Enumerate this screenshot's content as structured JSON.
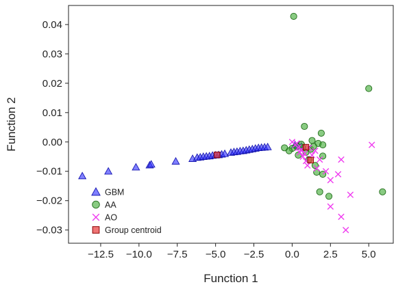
{
  "chart_data": {
    "type": "scatter",
    "xlabel": "Function 1",
    "ylabel": "Function 2",
    "xlim": [
      -14.6,
      6.6
    ],
    "ylim": [
      -0.0345,
      0.0465
    ],
    "x_ticks": [
      -12.5,
      -10.0,
      -7.5,
      -5.0,
      -2.5,
      0.0,
      2.5,
      5.0
    ],
    "x_tick_labels": [
      "−12.5",
      "−10.0",
      "−7.5",
      "−5.0",
      "−2.5",
      "0.0",
      "2.5",
      "5.0"
    ],
    "y_ticks": [
      -0.03,
      -0.02,
      -0.01,
      0.0,
      0.01,
      0.02,
      0.03,
      0.04
    ],
    "y_tick_labels": [
      "−0.03",
      "−0.02",
      "−0.01",
      "0.00",
      "0.01",
      "0.02",
      "0.03",
      "0.04"
    ],
    "grid": false,
    "legend_position": "bottom-left",
    "series": [
      {
        "name": "GBM",
        "marker": "triangle",
        "color": "#2b2bff",
        "edge": "#1616b0",
        "points": [
          [
            -13.7,
            -0.0116
          ],
          [
            -12.0,
            -0.01
          ],
          [
            -10.2,
            -0.0086
          ],
          [
            -9.3,
            -0.0079
          ],
          [
            -9.2,
            -0.0076
          ],
          [
            -7.6,
            -0.0066
          ],
          [
            -6.5,
            -0.0057
          ],
          [
            -6.2,
            -0.0053
          ],
          [
            -6.0,
            -0.0052
          ],
          [
            -5.8,
            -0.005
          ],
          [
            -5.6,
            -0.0049
          ],
          [
            -5.4,
            -0.0048
          ],
          [
            -5.2,
            -0.0046
          ],
          [
            -5.0,
            -0.0045
          ],
          [
            -4.8,
            -0.0044
          ],
          [
            -4.6,
            -0.0042
          ],
          [
            -4.4,
            -0.004
          ],
          [
            -4.0,
            -0.0036
          ],
          [
            -3.8,
            -0.0034
          ],
          [
            -3.6,
            -0.0033
          ],
          [
            -3.4,
            -0.0031
          ],
          [
            -3.2,
            -0.003
          ],
          [
            -3.0,
            -0.0028
          ],
          [
            -2.8,
            -0.0026
          ],
          [
            -2.6,
            -0.0024
          ],
          [
            -2.4,
            -0.0022
          ],
          [
            -2.2,
            -0.002
          ],
          [
            -2.0,
            -0.0019
          ],
          [
            -1.8,
            -0.0018
          ],
          [
            -1.6,
            -0.0017
          ],
          [
            0.2,
            -0.001
          ],
          [
            0.4,
            -0.0012
          ],
          [
            0.6,
            -0.0015
          ]
        ]
      },
      {
        "name": "AA",
        "marker": "circle",
        "color": "#3aa82e",
        "edge": "#1f6b18",
        "points": [
          [
            0.1,
            0.0428
          ],
          [
            5.0,
            0.0182
          ],
          [
            0.8,
            0.0053
          ],
          [
            1.9,
            0.003
          ],
          [
            1.3,
            0.0005
          ],
          [
            1.7,
            -0.0005
          ],
          [
            2.0,
            -0.001
          ],
          [
            0.0,
            -0.0022
          ],
          [
            -0.2,
            -0.003
          ],
          [
            -0.5,
            -0.002
          ],
          [
            0.3,
            -0.0015
          ],
          [
            0.6,
            -0.0008
          ],
          [
            0.9,
            -0.0035
          ],
          [
            1.1,
            -0.006
          ],
          [
            1.5,
            -0.008
          ],
          [
            1.6,
            -0.0103
          ],
          [
            2.0,
            -0.011
          ],
          [
            2.0,
            -0.0048
          ],
          [
            1.8,
            -0.017
          ],
          [
            2.4,
            -0.0185
          ],
          [
            5.9,
            -0.017
          ],
          [
            0.4,
            -0.0045
          ],
          [
            1.2,
            -0.0025
          ],
          [
            0.7,
            -0.002
          ],
          [
            1.4,
            -0.0015
          ]
        ]
      },
      {
        "name": "AO",
        "marker": "x",
        "color": "#ef3cef",
        "points": [
          [
            0.0,
            0.0
          ],
          [
            0.2,
            -0.001
          ],
          [
            0.4,
            -0.002
          ],
          [
            0.5,
            -0.0035
          ],
          [
            0.7,
            -0.005
          ],
          [
            0.9,
            -0.0065
          ],
          [
            1.0,
            -0.008
          ],
          [
            1.3,
            -0.0045
          ],
          [
            1.5,
            -0.003
          ],
          [
            1.8,
            -0.006
          ],
          [
            2.2,
            -0.01
          ],
          [
            2.5,
            -0.013
          ],
          [
            2.5,
            -0.022
          ],
          [
            3.0,
            -0.011
          ],
          [
            3.2,
            -0.006
          ],
          [
            3.2,
            -0.0255
          ],
          [
            3.5,
            -0.03
          ],
          [
            3.8,
            -0.018
          ],
          [
            5.2,
            -0.001
          ],
          [
            1.1,
            -0.002
          ],
          [
            0.6,
            -0.0025
          ],
          [
            0.3,
            -0.0005
          ],
          [
            1.6,
            -0.009
          ],
          [
            0.8,
            -0.004
          ]
        ]
      },
      {
        "name": "Group centroid",
        "marker": "square",
        "color": "#e83a3a",
        "edge": "#8b0000",
        "points": [
          [
            -4.9,
            -0.0044
          ],
          [
            0.9,
            -0.0018
          ],
          [
            1.2,
            -0.0062
          ]
        ]
      }
    ]
  }
}
